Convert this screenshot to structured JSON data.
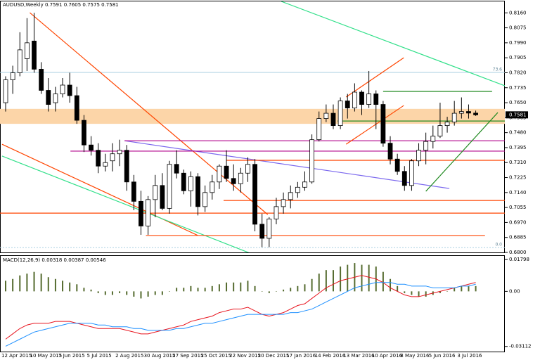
{
  "chart_data": [
    {
      "type": "candlestick",
      "title": "AUDUSD,Weekly  0.7591 0.7605 0.7575 0.7581",
      "categories": [
        "12 Apr 2015",
        null,
        null,
        null,
        "10 May 2015",
        null,
        null,
        null,
        "7 Jun 2015",
        null,
        null,
        null,
        "5 Jul 2015",
        null,
        null,
        null,
        "2 Aug 2015",
        null,
        null,
        null,
        "30 Aug 2015",
        null,
        null,
        null,
        "27 Sep 2015",
        null,
        null,
        null,
        "25 Oct 2015",
        null,
        null,
        null,
        "22 Nov 2015",
        null,
        null,
        null,
        "20 Dec 2015",
        null,
        null,
        null,
        "17 Jan 2016",
        null,
        null,
        null,
        "14 Feb 2016",
        null,
        null,
        null,
        "13 Mar 2016",
        null,
        null,
        null,
        "10 Apr 2016",
        null,
        null,
        null,
        "8 May 2016",
        null,
        null,
        null,
        "5 Jun 2016",
        null,
        null,
        null,
        "3 Jul 2016",
        null,
        null
      ],
      "open": [
        0.765,
        0.778,
        0.782,
        0.79,
        0.8,
        0.784,
        0.772,
        0.765,
        0.77,
        0.775,
        0.769,
        0.755,
        0.741,
        0.738,
        0.729,
        0.732,
        0.736,
        0.738,
        0.72,
        0.709,
        0.695,
        0.71,
        0.718,
        0.705,
        0.73,
        0.725,
        0.715,
        0.723,
        0.706,
        0.714,
        0.72,
        0.729,
        0.722,
        0.719,
        0.725,
        0.73,
        0.696,
        0.688,
        0.699,
        0.706,
        0.71,
        0.714,
        0.717,
        0.72,
        0.744,
        0.756,
        0.759,
        0.752,
        0.766,
        0.762,
        0.771,
        0.764,
        0.77,
        0.764,
        0.742,
        0.733,
        0.726,
        0.718,
        0.732,
        0.738,
        0.743,
        0.746,
        0.752,
        0.754,
        0.759,
        0.76,
        0.7591
      ],
      "high": [
        0.78,
        0.786,
        0.805,
        0.813,
        0.816,
        0.788,
        0.779,
        0.774,
        0.779,
        0.782,
        0.774,
        0.758,
        0.746,
        0.742,
        0.736,
        0.742,
        0.744,
        0.741,
        0.724,
        0.715,
        0.712,
        0.724,
        0.725,
        0.732,
        0.738,
        0.727,
        0.726,
        0.725,
        0.718,
        0.724,
        0.73,
        0.738,
        0.73,
        0.728,
        0.734,
        0.733,
        0.702,
        0.7,
        0.711,
        0.714,
        0.718,
        0.72,
        0.726,
        0.747,
        0.76,
        0.764,
        0.764,
        0.768,
        0.77,
        0.776,
        0.772,
        0.783,
        0.772,
        0.766,
        0.746,
        0.736,
        0.729,
        0.733,
        0.742,
        0.748,
        0.752,
        0.765,
        0.757,
        0.766,
        0.768,
        0.764,
        0.7605
      ],
      "low": [
        0.76,
        0.77,
        0.78,
        0.783,
        0.782,
        0.77,
        0.76,
        0.76,
        0.768,
        0.765,
        0.753,
        0.737,
        0.735,
        0.725,
        0.726,
        0.726,
        0.729,
        0.715,
        0.704,
        0.69,
        0.69,
        0.7,
        0.704,
        0.702,
        0.722,
        0.713,
        0.706,
        0.701,
        0.703,
        0.71,
        0.716,
        0.72,
        0.715,
        0.714,
        0.72,
        0.692,
        0.683,
        0.683,
        0.696,
        0.702,
        0.705,
        0.711,
        0.715,
        0.719,
        0.743,
        0.754,
        0.75,
        0.75,
        0.756,
        0.76,
        0.758,
        0.762,
        0.75,
        0.74,
        0.73,
        0.724,
        0.715,
        0.715,
        0.729,
        0.73,
        0.739,
        0.745,
        0.748,
        0.752,
        0.756,
        0.756,
        0.7575
      ],
      "close": [
        0.778,
        0.782,
        0.795,
        0.799,
        0.784,
        0.772,
        0.764,
        0.77,
        0.775,
        0.769,
        0.755,
        0.741,
        0.738,
        0.729,
        0.731,
        0.736,
        0.738,
        0.72,
        0.709,
        0.695,
        0.71,
        0.718,
        0.705,
        0.73,
        0.725,
        0.715,
        0.723,
        0.706,
        0.714,
        0.72,
        0.729,
        0.722,
        0.719,
        0.725,
        0.73,
        0.696,
        0.688,
        0.699,
        0.706,
        0.71,
        0.714,
        0.717,
        0.72,
        0.744,
        0.756,
        0.759,
        0.752,
        0.766,
        0.762,
        0.771,
        0.764,
        0.77,
        0.764,
        0.742,
        0.733,
        0.726,
        0.718,
        0.732,
        0.738,
        0.743,
        0.746,
        0.752,
        0.754,
        0.759,
        0.76,
        0.7591,
        0.7581
      ],
      "price_label": {
        "value": 0.7581,
        "label": "0.7581"
      },
      "ylim": [
        0.68,
        0.8225
      ],
      "yticks": [
        {
          "value": 0.816,
          "label": "0.8160"
        },
        {
          "value": 0.8075,
          "label": "0.8075"
        },
        {
          "value": 0.799,
          "label": "0.7990"
        },
        {
          "value": 0.7905,
          "label": "0.7905"
        },
        {
          "value": 0.782,
          "label": "0.7820"
        },
        {
          "value": 0.7735,
          "label": "0.7735"
        },
        {
          "value": 0.765,
          "label": "0.7650"
        },
        {
          "value": 0.7565,
          "label": "0.7565"
        },
        {
          "value": 0.748,
          "label": "0.7480"
        },
        {
          "value": 0.7395,
          "label": "0.7395"
        },
        {
          "value": 0.731,
          "label": "0.7310"
        },
        {
          "value": 0.7225,
          "label": "0.7225"
        },
        {
          "value": 0.714,
          "label": "0.7140"
        },
        {
          "value": 0.7055,
          "label": "0.7055"
        },
        {
          "value": 0.697,
          "label": "0.6970"
        },
        {
          "value": 0.6885,
          "label": "0.6885"
        },
        {
          "value": 0.68,
          "label": "0.6800"
        }
      ],
      "band": [
        0.753,
        0.7615
      ],
      "band_color": "#fcd5a8",
      "fib_color": "#a9cfe0",
      "fib_levels": [
        {
          "value": 0.7822,
          "label": "73.6"
        },
        {
          "value": 0.6828,
          "label": "0.0"
        }
      ],
      "lines": [
        {
          "x0": 3.4,
          "y0": 0.8161,
          "x1": 36.8,
          "y1": 0.7015,
          "color": "#ff4500"
        },
        {
          "x0": -0.5,
          "y0": 0.7414,
          "x1": 27,
          "y1": 0.6896,
          "color": "#ff4500"
        },
        {
          "x0": -0.5,
          "y0": 0.7347,
          "x1": 34.3,
          "y1": 0.6796,
          "color": "#32e08a"
        },
        {
          "x0": 38.7,
          "y0": 0.8225,
          "x1": 74.8,
          "y1": 0.7674,
          "color": "#32e08a"
        },
        {
          "x0": 16.7,
          "y0": 0.7434,
          "x1": 62.3,
          "y1": 0.7163,
          "color": "#7b68ee"
        },
        {
          "x0": 16.7,
          "y0": 0.7434,
          "x1": 70.8,
          "y1": 0.7434,
          "color": "#b0008a"
        },
        {
          "x0": 9.1,
          "y0": 0.7375,
          "x1": 70.8,
          "y1": 0.7375,
          "color": "#b0008a"
        },
        {
          "x0": 31,
          "y0": 0.7323,
          "x1": 70.3,
          "y1": 0.7323,
          "color": "#ff4500"
        },
        {
          "x0": 30.6,
          "y0": 0.7095,
          "x1": 70.3,
          "y1": 0.7095,
          "color": "#ff4500"
        },
        {
          "x0": -0.8,
          "y0": 0.7023,
          "x1": 70.3,
          "y1": 0.7023,
          "color": "#ff4500"
        },
        {
          "x0": 19.7,
          "y0": 0.6896,
          "x1": 67.3,
          "y1": 0.6896,
          "color": "#ff4500"
        },
        {
          "x0": 53,
          "y0": 0.7714,
          "x1": 68.3,
          "y1": 0.7714,
          "color": "#228b22"
        },
        {
          "x0": 46.6,
          "y0": 0.7546,
          "x1": 70.3,
          "y1": 0.7546,
          "color": "#228b22"
        },
        {
          "x0": 47.8,
          "y0": 0.7682,
          "x1": 55.9,
          "y1": 0.7905,
          "color": "#ff4500"
        },
        {
          "x0": 47.8,
          "y0": 0.7414,
          "x1": 55.9,
          "y1": 0.7634,
          "color": "#ff4500"
        },
        {
          "x0": 59,
          "y0": 0.7147,
          "x1": 69.1,
          "y1": 0.7594,
          "color": "#228b22"
        }
      ]
    },
    {
      "type": "macd",
      "title": "MACD(12,26,9) 0.00318 0.00387 0.00546",
      "values": [
        0.006,
        0.007,
        0.009,
        0.01,
        0.011,
        0.01,
        0.008,
        0.007,
        0.006,
        0.005,
        0.004,
        0.002,
        0.001,
        -0.001,
        -0.002,
        -0.002,
        -0.001,
        -0.002,
        -0.003,
        -0.004,
        -0.003,
        -0.002,
        -0.002,
        0.0,
        0.002,
        0.002,
        0.003,
        0.002,
        0.002,
        0.003,
        0.004,
        0.005,
        0.005,
        0.005,
        0.006,
        0.003,
        0.0,
        -0.001,
        0.0,
        0.001,
        0.002,
        0.003,
        0.004,
        0.007,
        0.01,
        0.012,
        0.012,
        0.014,
        0.015,
        0.016,
        0.015,
        0.015,
        0.014,
        0.011,
        0.007,
        0.003,
        -0.001,
        -0.002,
        -0.003,
        -0.003,
        -0.002,
        -0.001,
        0.0,
        0.002,
        0.003,
        0.003,
        0.003
      ],
      "color": "#556b2f",
      "series": [
        {
          "color": "#e8141e",
          "values": [
            -0.027,
            -0.024,
            -0.021,
            -0.019,
            -0.018,
            -0.018,
            -0.018,
            -0.017,
            -0.017,
            -0.017,
            -0.018,
            -0.019,
            -0.02,
            -0.021,
            -0.021,
            -0.021,
            -0.021,
            -0.022,
            -0.023,
            -0.024,
            -0.024,
            -0.023,
            -0.022,
            -0.021,
            -0.02,
            -0.019,
            -0.017,
            -0.016,
            -0.015,
            -0.014,
            -0.012,
            -0.011,
            -0.01,
            -0.01,
            -0.009,
            -0.011,
            -0.013,
            -0.014,
            -0.013,
            -0.012,
            -0.01,
            -0.008,
            -0.007,
            -0.004,
            -0.001,
            0.002,
            0.004,
            0.006,
            0.007,
            0.008,
            0.009,
            0.008,
            0.007,
            0.005,
            0.002,
            0.0,
            -0.002,
            -0.003,
            -0.003,
            -0.002,
            -0.001,
            0.0,
            0.001,
            0.002,
            0.003,
            0.004,
            0.005
          ]
        },
        {
          "color": "#1e90ff",
          "values": [
            -0.031,
            -0.029,
            -0.027,
            -0.025,
            -0.023,
            -0.022,
            -0.021,
            -0.02,
            -0.019,
            -0.018,
            -0.018,
            -0.018,
            -0.018,
            -0.019,
            -0.019,
            -0.02,
            -0.02,
            -0.02,
            -0.021,
            -0.021,
            -0.022,
            -0.022,
            -0.022,
            -0.022,
            -0.021,
            -0.021,
            -0.02,
            -0.019,
            -0.018,
            -0.018,
            -0.017,
            -0.016,
            -0.015,
            -0.014,
            -0.013,
            -0.013,
            -0.013,
            -0.013,
            -0.013,
            -0.013,
            -0.012,
            -0.012,
            -0.011,
            -0.01,
            -0.008,
            -0.006,
            -0.004,
            -0.002,
            0.0,
            0.002,
            0.003,
            0.004,
            0.005,
            0.005,
            0.005,
            0.004,
            0.004,
            0.003,
            0.003,
            0.003,
            0.002,
            0.002,
            0.002,
            0.002,
            0.003,
            0.003,
            0.004
          ]
        }
      ],
      "ylim": [
        -0.034,
        0.02
      ],
      "yticks": [
        0.01798,
        {
          "value": 0,
          "label": "0.00"
        },
        -0.03112
      ]
    }
  ]
}
